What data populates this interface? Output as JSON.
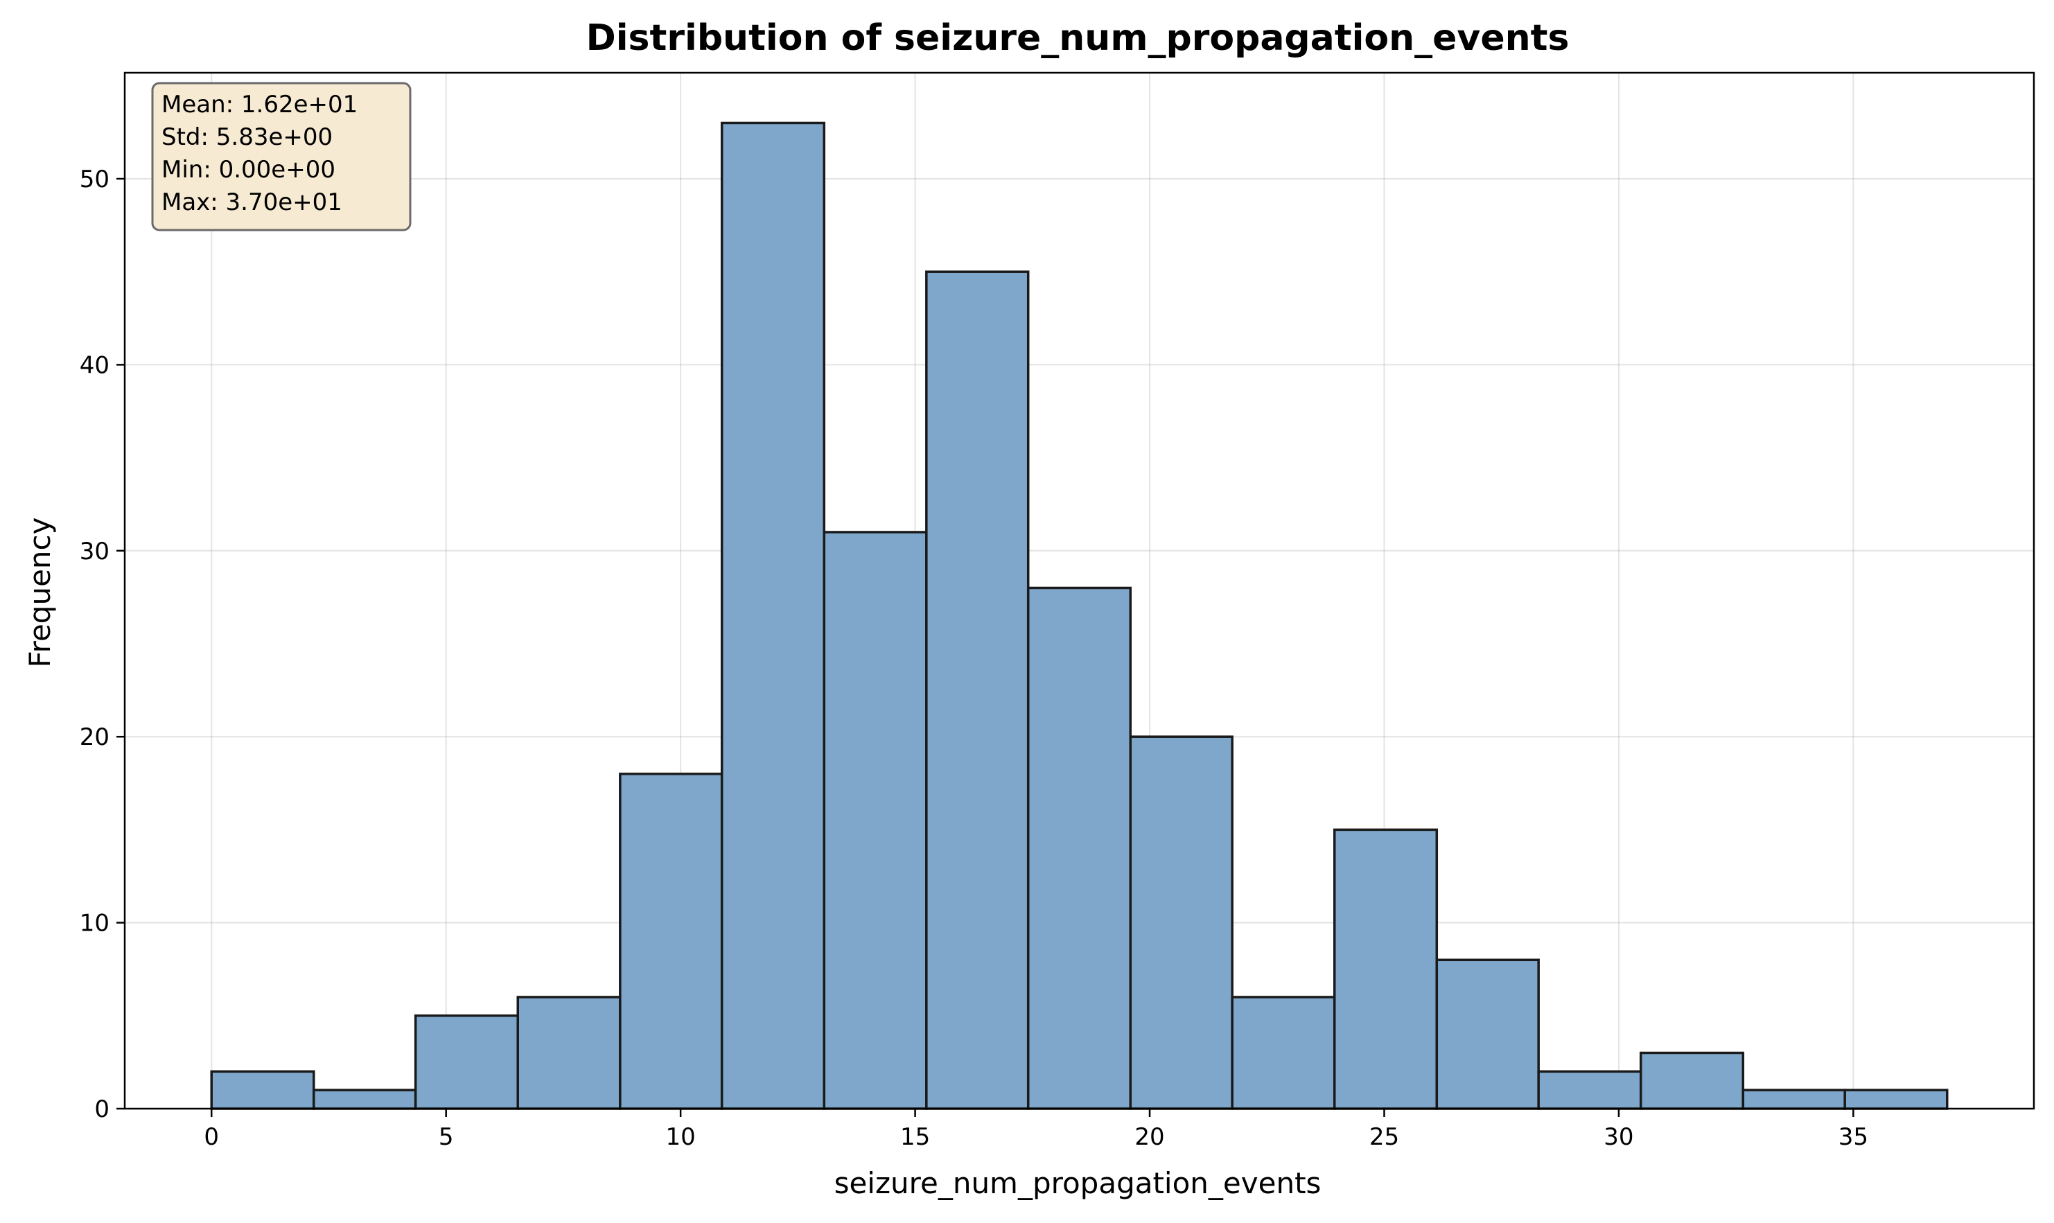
{
  "chart_data": {
    "type": "bar",
    "title": "Distribution of seizure_num_propagation_events",
    "xlabel": "seizure_num_propagation_events",
    "ylabel": "Frequency",
    "xlim": [
      -1.85,
      38.85
    ],
    "ylim": [
      0,
      55.7
    ],
    "grid": true,
    "bar_color": "#7ea7cb",
    "edge_color": "#1a1a1a",
    "bins": [
      {
        "x0": 0.0,
        "x1": 2.18,
        "count": 2
      },
      {
        "x0": 2.18,
        "x1": 4.35,
        "count": 1
      },
      {
        "x0": 4.35,
        "x1": 6.53,
        "count": 5
      },
      {
        "x0": 6.53,
        "x1": 8.71,
        "count": 6
      },
      {
        "x0": 8.71,
        "x1": 10.88,
        "count": 18
      },
      {
        "x0": 10.88,
        "x1": 13.06,
        "count": 53
      },
      {
        "x0": 13.06,
        "x1": 15.24,
        "count": 31
      },
      {
        "x0": 15.24,
        "x1": 17.41,
        "count": 45
      },
      {
        "x0": 17.41,
        "x1": 19.59,
        "count": 28
      },
      {
        "x0": 19.59,
        "x1": 21.76,
        "count": 20
      },
      {
        "x0": 21.76,
        "x1": 23.94,
        "count": 6
      },
      {
        "x0": 23.94,
        "x1": 26.12,
        "count": 15
      },
      {
        "x0": 26.12,
        "x1": 28.29,
        "count": 8
      },
      {
        "x0": 28.29,
        "x1": 30.47,
        "count": 2
      },
      {
        "x0": 30.47,
        "x1": 32.65,
        "count": 3
      },
      {
        "x0": 32.65,
        "x1": 34.82,
        "count": 1
      },
      {
        "x0": 34.82,
        "x1": 37.0,
        "count": 1
      }
    ],
    "x_ticks": [
      0,
      5,
      10,
      15,
      20,
      25,
      30,
      35
    ],
    "y_ticks": [
      0,
      10,
      20,
      30,
      40,
      50
    ],
    "stats_box": {
      "lines": [
        "Mean: 1.62e+01",
        "Std: 5.83e+00",
        "Min: 0.00e+00",
        "Max: 3.70e+01"
      ],
      "placement": "top-left",
      "fill": "#f7ead3",
      "edge": "#6b6b6b"
    }
  }
}
